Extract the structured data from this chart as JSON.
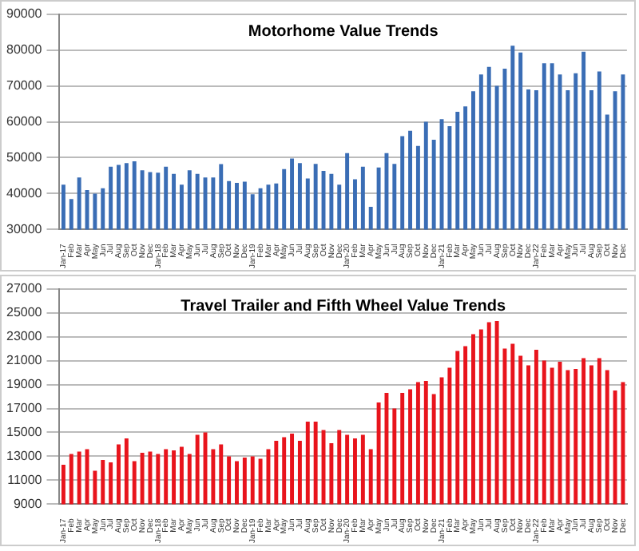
{
  "chart_data": [
    {
      "type": "bar",
      "title": "Motorhome Value Trends",
      "categories": [
        "Jan-17",
        "Feb",
        "Mar",
        "Apr",
        "May",
        "Jun",
        "Jul",
        "Aug",
        "Sep",
        "Oct",
        "Nov",
        "Dec",
        "Jan-18",
        "Feb",
        "Mar",
        "Apr",
        "May",
        "Jun",
        "Jul",
        "Aug",
        "Sep",
        "Oct",
        "Nov",
        "Dec",
        "Jan-19",
        "Feb",
        "Mar",
        "Apr",
        "May",
        "Jun",
        "Jul",
        "Aug",
        "Sep",
        "Oct",
        "Nov",
        "Dec",
        "Jan-20",
        "Feb",
        "Mar",
        "Apr",
        "May",
        "Jun",
        "Jul",
        "Aug",
        "Sep",
        "Oct",
        "Nov",
        "Dec",
        "Jan-21",
        "Feb",
        "Mar",
        "Apr",
        "May",
        "Jun",
        "Jul",
        "Aug",
        "Sep",
        "Oct",
        "Nov",
        "Dec",
        "Jan-22",
        "Feb",
        "Mar",
        "Apr",
        "May",
        "Jun",
        "Jul",
        "Aug",
        "Sep",
        "Oct",
        "Nov",
        "Dec"
      ],
      "values": [
        42500,
        38500,
        44500,
        41000,
        40000,
        41500,
        47500,
        48000,
        48500,
        49000,
        46500,
        46000,
        45800,
        47500,
        45500,
        42500,
        46500,
        45500,
        44500,
        44500,
        48200,
        43500,
        43000,
        43300,
        39800,
        41500,
        42500,
        42800,
        46800,
        49800,
        48500,
        44200,
        48300,
        46300,
        45500,
        42500,
        51300,
        44000,
        47500,
        36300,
        47300,
        51300,
        48300,
        56000,
        57500,
        53300,
        60000,
        55000,
        60700,
        58800,
        62800,
        64300,
        68500,
        73200,
        75300,
        70000,
        74800,
        81200,
        79300,
        69000,
        68800,
        76300,
        76300,
        73200,
        68800,
        73500,
        79500,
        68800,
        74000,
        62000,
        68500,
        73200
      ],
      "color": "#3a6db5",
      "ylim": [
        30000,
        90000
      ],
      "yticks": [
        30000,
        40000,
        50000,
        60000,
        70000,
        80000,
        90000
      ],
      "grid": "y",
      "legend": false
    },
    {
      "type": "bar",
      "title": "Travel Trailer and Fifth Wheel Value Trends",
      "categories": [
        "Jan-17",
        "Feb",
        "Mar",
        "Apr",
        "May",
        "Jun",
        "Jul",
        "Aug",
        "Sep",
        "Oct",
        "Nov",
        "Dec",
        "Jan-18",
        "Feb",
        "Mar",
        "Apr",
        "May",
        "Jun",
        "Jul",
        "Aug",
        "Sep",
        "Oct",
        "Nov",
        "Dec",
        "Jan-19",
        "Feb",
        "Mar",
        "Apr",
        "May",
        "Jun",
        "Jul",
        "Aug",
        "Sep",
        "Oct",
        "Nov",
        "Dec",
        "Jan-20",
        "Feb",
        "Mar",
        "Apr",
        "May",
        "Jun",
        "Jul",
        "Aug",
        "Sep",
        "Oct",
        "Nov",
        "Dec",
        "Jan-21",
        "Feb",
        "Mar",
        "Apr",
        "May",
        "Jun",
        "Jul",
        "Aug",
        "Sep",
        "Oct",
        "Nov",
        "Dec",
        "Jan-22",
        "Feb",
        "Mar",
        "Apr",
        "May",
        "Jun",
        "Jul",
        "Aug",
        "Sep",
        "Oct",
        "Nov",
        "Dec"
      ],
      "values": [
        12300,
        13200,
        13400,
        13600,
        11800,
        12700,
        12500,
        14000,
        14500,
        12600,
        13300,
        13400,
        13200,
        13600,
        13500,
        13800,
        13200,
        14800,
        15000,
        13600,
        14000,
        13000,
        12600,
        12900,
        13000,
        12800,
        13600,
        14300,
        14600,
        14900,
        14300,
        15900,
        15900,
        15200,
        14100,
        15200,
        14800,
        14500,
        14800,
        13600,
        17500,
        18300,
        17000,
        18300,
        18600,
        19200,
        19300,
        18200,
        19600,
        20400,
        21800,
        22200,
        23200,
        23600,
        24200,
        24300,
        22000,
        22400,
        21400,
        20600,
        21900,
        21000,
        20400,
        20900,
        20200,
        20300,
        21200,
        20600,
        21200,
        20200,
        18500,
        19200
      ],
      "color": "#e8141c",
      "ylim": [
        9000,
        27000
      ],
      "yticks": [
        9000,
        11000,
        13000,
        15000,
        17000,
        19000,
        21000,
        23000,
        25000,
        27000
      ],
      "grid": "y",
      "legend": false
    }
  ]
}
